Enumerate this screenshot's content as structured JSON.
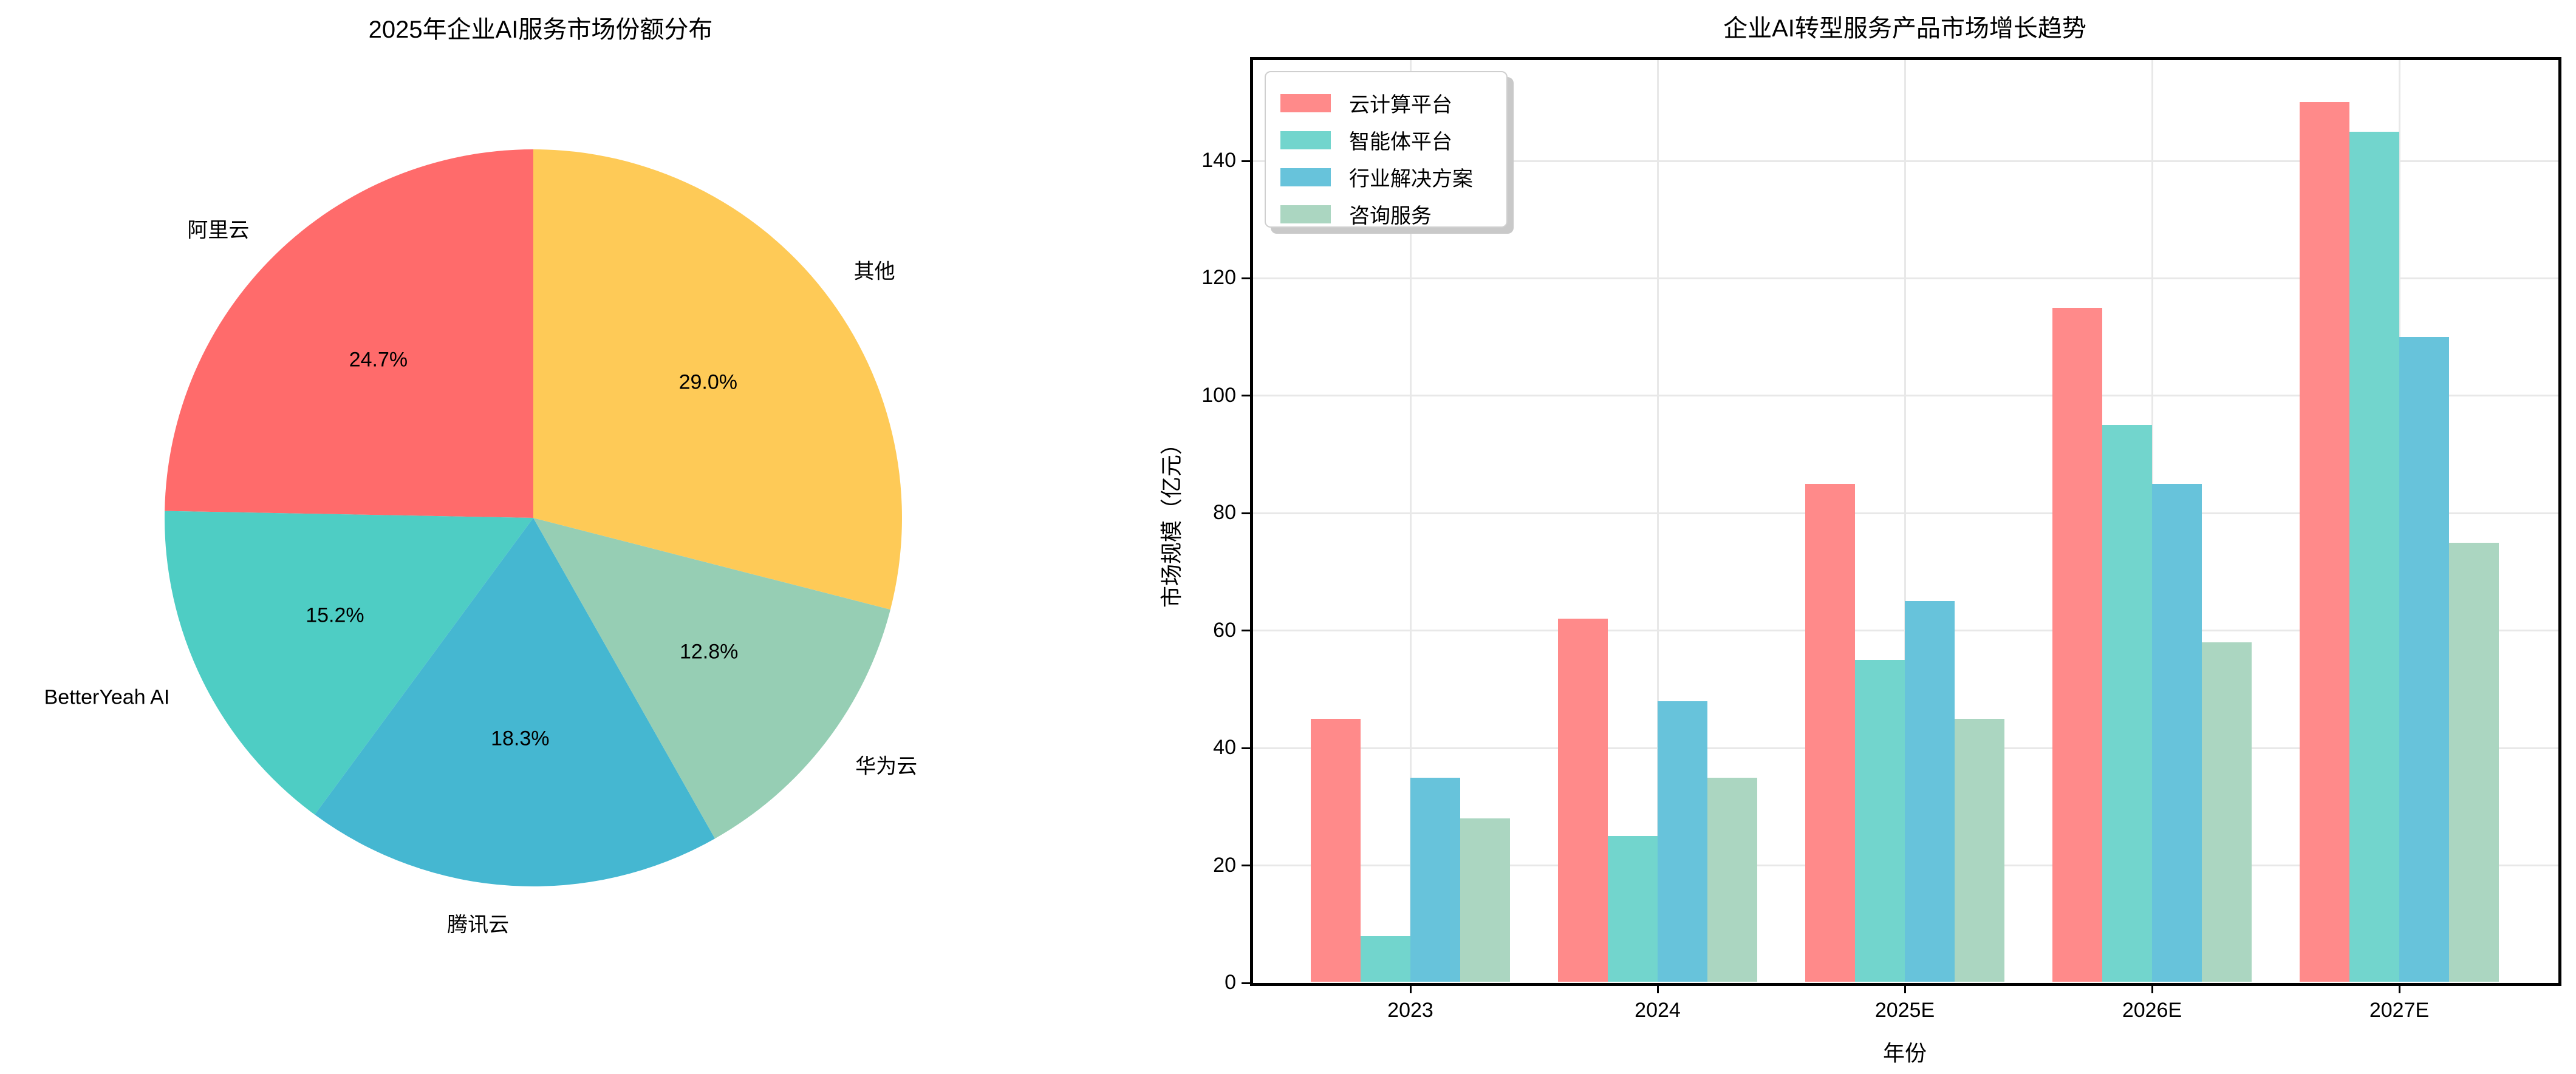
{
  "chart_data": [
    {
      "type": "pie",
      "title": "2025年企业AI服务市场份额分布",
      "labels": [
        "阿里云",
        "BetterYeah AI",
        "腾讯云",
        "华为云",
        "其他"
      ],
      "values": [
        24.7,
        15.2,
        18.3,
        12.8,
        29.0
      ],
      "pct_labels": [
        "24.7%",
        "15.2%",
        "18.3%",
        "12.8%",
        "29.0%"
      ],
      "colors": [
        "#FF6B6B",
        "#4ECDC4",
        "#45B7D1",
        "#96CEB4",
        "#FECA57"
      ],
      "start_angle": 90,
      "direction": "counterclockwise",
      "label_text_color": "#000000"
    },
    {
      "type": "bar",
      "title": "企业AI转型服务产品市场增长趋势",
      "xlabel": "年份",
      "ylabel": "市场规模（亿元）",
      "categories": [
        "2023",
        "2024",
        "2025E",
        "2026E",
        "2027E"
      ],
      "series": [
        {
          "name": "云计算平台",
          "color": "#FF8A8A",
          "values": [
            45,
            62,
            85,
            115,
            150
          ]
        },
        {
          "name": "智能体平台",
          "color": "#72D5CD",
          "values": [
            8,
            25,
            55,
            95,
            145
          ]
        },
        {
          "name": "行业解决方案",
          "color": "#67C3DB",
          "values": [
            35,
            48,
            65,
            85,
            110
          ]
        },
        {
          "name": "咨询服务",
          "color": "#ABD6C1",
          "values": [
            28,
            35,
            45,
            58,
            75
          ]
        }
      ],
      "yticks": [
        0,
        20,
        40,
        60,
        80,
        100,
        120,
        140
      ],
      "ylim": [
        0,
        157.5
      ],
      "grid": true,
      "legend_position": "upper left",
      "grid_color": "#e8e8e8",
      "spine_color": "#000000"
    }
  ]
}
